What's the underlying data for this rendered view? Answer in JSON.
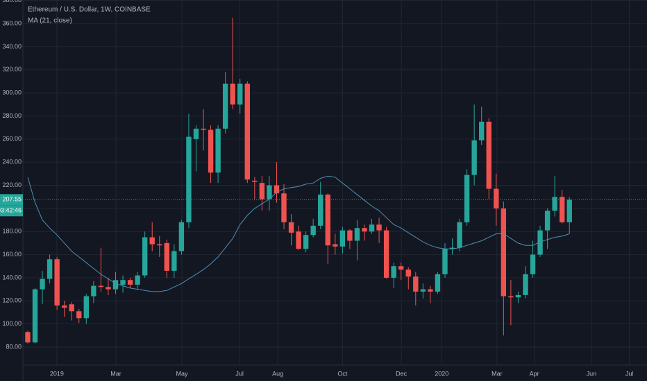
{
  "chart_data": {
    "type": "candlestick",
    "title": "Ethereum / U.S. Dollar, 1W, COINBASE",
    "up_color": "#26a69a",
    "down_color": "#ef5350",
    "grid": true,
    "open": [
      93,
      84,
      130,
      139,
      156,
      116,
      117,
      111,
      105,
      124,
      133,
      132,
      130,
      134,
      138,
      134,
      142,
      175,
      169,
      170,
      146,
      163,
      188,
      260,
      269,
      268,
      231,
      269,
      308,
      290,
      308,
      224,
      222,
      208,
      220,
      213,
      188,
      180,
      165,
      177,
      185,
      212,
      169,
      167,
      181,
      172,
      183,
      180,
      186,
      181,
      140,
      150,
      147,
      141,
      128,
      130,
      128,
      143,
      165,
      166,
      188,
      229,
      259,
      275,
      217,
      200,
      124,
      123,
      125,
      143,
      160,
      181,
      198,
      210,
      188
    ],
    "high": [
      94,
      131,
      146,
      160,
      158,
      120,
      119,
      113,
      126,
      137,
      166,
      140,
      145,
      142,
      140,
      145,
      180,
      188,
      176,
      173,
      169,
      190,
      282,
      272,
      286,
      272,
      272,
      318,
      365,
      312,
      310,
      227,
      228,
      228,
      240,
      221,
      195,
      185,
      180,
      191,
      223,
      213,
      178,
      184,
      182,
      190,
      186,
      191,
      192,
      184,
      153,
      153,
      149,
      145,
      135,
      133,
      145,
      170,
      174,
      191,
      234,
      290,
      288,
      278,
      230,
      206,
      138,
      128,
      150,
      172,
      185,
      200,
      228,
      216,
      210
    ],
    "low": [
      83,
      83,
      117,
      135,
      112,
      106,
      103,
      101,
      100,
      118,
      128,
      125,
      126,
      127,
      131,
      130,
      140,
      163,
      158,
      140,
      140,
      160,
      183,
      232,
      250,
      222,
      222,
      265,
      286,
      282,
      222,
      208,
      198,
      198,
      205,
      182,
      168,
      164,
      162,
      175,
      182,
      152,
      160,
      161,
      165,
      155,
      172,
      178,
      170,
      139,
      131,
      138,
      130,
      116,
      122,
      118,
      126,
      140,
      160,
      163,
      185,
      220,
      255,
      208,
      185,
      90,
      99,
      118,
      122,
      140,
      158,
      165,
      193,
      187,
      178
    ],
    "close": [
      84,
      130,
      139,
      156,
      116,
      114,
      111,
      105,
      124,
      133,
      132,
      130,
      138,
      138,
      134,
      142,
      175,
      169,
      168,
      146,
      163,
      188,
      262,
      269,
      268,
      231,
      269,
      308,
      290,
      308,
      225,
      223,
      208,
      220,
      213,
      188,
      179,
      165,
      177,
      185,
      212,
      168,
      167,
      181,
      172,
      183,
      180,
      186,
      181,
      140,
      150,
      147,
      141,
      128,
      130,
      128,
      143,
      165,
      166,
      188,
      229,
      259,
      275,
      217,
      200,
      124,
      123,
      125,
      143,
      160,
      181,
      198,
      210,
      188,
      207.55
    ],
    "ma": {
      "name": "MA (21, close)",
      "color": "#4f8fb3",
      "values": [
        227,
        205,
        190,
        183,
        177,
        170,
        163,
        158,
        153,
        148,
        143,
        139,
        135,
        133,
        131,
        130,
        129,
        128,
        128,
        129,
        132,
        135,
        139,
        143,
        147,
        152,
        158,
        166,
        174,
        186,
        194,
        200,
        204,
        208,
        214,
        217,
        218,
        219,
        221,
        222,
        226,
        228,
        227,
        222,
        217,
        212,
        207,
        202,
        198,
        192,
        186,
        183,
        179,
        175,
        171,
        168,
        166,
        165,
        165,
        166,
        168,
        170,
        172,
        175,
        178,
        178,
        174,
        170,
        168,
        168,
        171,
        173,
        175,
        176,
        178
      ]
    },
    "last_price": 207.55,
    "countdown": "03:42:46",
    "xlim": [
      -0.66,
      84.6
    ],
    "xticks": [
      {
        "value": 3.98,
        "label": "2019"
      },
      {
        "value": 12.05,
        "label": "Mar"
      },
      {
        "value": 21.06,
        "label": "May"
      },
      {
        "value": 28.94,
        "label": "Jul"
      },
      {
        "value": 34.16,
        "label": "Aug"
      },
      {
        "value": 43.0,
        "label": "Oct"
      },
      {
        "value": 51.04,
        "label": "Dec"
      },
      {
        "value": 56.55,
        "label": "2020"
      },
      {
        "value": 64.1,
        "label": "Mar"
      },
      {
        "value": 69.2,
        "label": "Apr"
      },
      {
        "value": 77.0,
        "label": "Jun"
      },
      {
        "value": 82.2,
        "label": "Jul"
      }
    ],
    "ylim": [
      64.4,
      380.4
    ],
    "yticks": [
      {
        "value": 80,
        "label": "80.00"
      },
      {
        "value": 100,
        "label": "100.00"
      },
      {
        "value": 120,
        "label": "120.00"
      },
      {
        "value": 140,
        "label": "140.00"
      },
      {
        "value": 160,
        "label": "160.00"
      },
      {
        "value": 180,
        "label": "180.00"
      },
      {
        "value": 200,
        "label": "200.00"
      },
      {
        "value": 220,
        "label": "220.00"
      },
      {
        "value": 240,
        "label": "240.00"
      },
      {
        "value": 260,
        "label": "260.00"
      },
      {
        "value": 280,
        "label": "280.00"
      },
      {
        "value": 300,
        "label": "300.00"
      },
      {
        "value": 320,
        "label": "320.00"
      },
      {
        "value": 340,
        "label": "340.00"
      },
      {
        "value": 360,
        "label": "360.00"
      },
      {
        "value": 380,
        "label": "380.00"
      }
    ]
  }
}
